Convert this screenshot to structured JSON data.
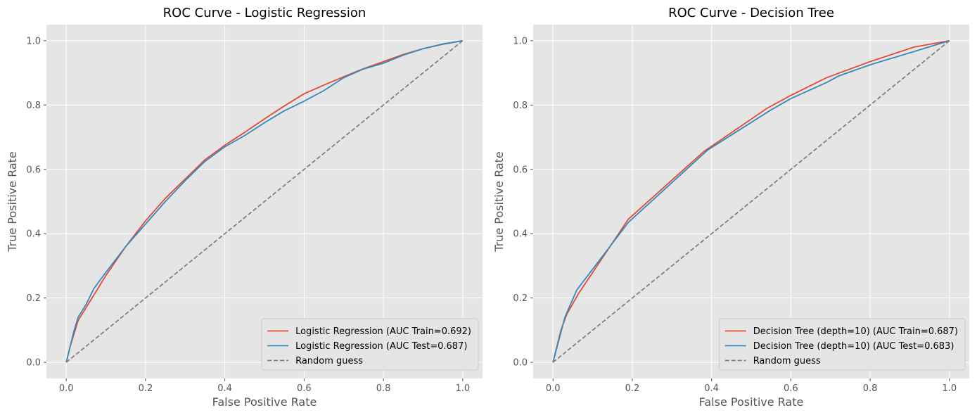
{
  "chart_data": [
    {
      "type": "line",
      "title": "ROC Curve - Logistic Regression",
      "xlabel": "False Positive Rate",
      "ylabel": "True Positive Rate",
      "xlim": [
        -0.05,
        1.05
      ],
      "ylim": [
        -0.05,
        1.05
      ],
      "xticks": [
        0.0,
        0.2,
        0.4,
        0.6,
        0.8,
        1.0
      ],
      "yticks": [
        0.0,
        0.2,
        0.4,
        0.6,
        0.8,
        1.0
      ],
      "xtick_labels": [
        "0.0",
        "0.2",
        "0.4",
        "0.6",
        "0.8",
        "1.0"
      ],
      "ytick_labels": [
        "0.0",
        "0.2",
        "0.4",
        "0.6",
        "0.8",
        "1.0"
      ],
      "grid": true,
      "legend_position": "lower-right",
      "series": [
        {
          "name": "Logistic Regression (AUC Train=0.692)",
          "color": "#e24a33",
          "dash": "solid",
          "x": [
            0.0,
            0.01,
            0.02,
            0.03,
            0.05,
            0.07,
            0.1,
            0.15,
            0.2,
            0.25,
            0.3,
            0.35,
            0.4,
            0.45,
            0.5,
            0.55,
            0.6,
            0.65,
            0.7,
            0.75,
            0.8,
            0.85,
            0.9,
            0.95,
            1.0
          ],
          "y": [
            0.0,
            0.05,
            0.09,
            0.13,
            0.17,
            0.21,
            0.27,
            0.36,
            0.44,
            0.51,
            0.57,
            0.63,
            0.675,
            0.715,
            0.757,
            0.797,
            0.835,
            0.862,
            0.888,
            0.913,
            0.935,
            0.957,
            0.975,
            0.989,
            1.0
          ]
        },
        {
          "name": "Logistic Regression (AUC Test=0.687)",
          "color": "#348abd",
          "dash": "solid",
          "x": [
            0.0,
            0.01,
            0.02,
            0.03,
            0.05,
            0.07,
            0.1,
            0.15,
            0.2,
            0.25,
            0.3,
            0.35,
            0.4,
            0.45,
            0.5,
            0.55,
            0.6,
            0.65,
            0.7,
            0.75,
            0.8,
            0.85,
            0.9,
            0.95,
            1.0
          ],
          "y": [
            0.0,
            0.05,
            0.1,
            0.14,
            0.18,
            0.23,
            0.28,
            0.36,
            0.43,
            0.5,
            0.565,
            0.625,
            0.67,
            0.705,
            0.745,
            0.782,
            0.812,
            0.845,
            0.885,
            0.912,
            0.93,
            0.955,
            0.975,
            0.99,
            1.0
          ]
        },
        {
          "name": "Random guess",
          "color": "#808080",
          "dash": "dashed",
          "x": [
            0.0,
            1.0
          ],
          "y": [
            0.0,
            1.0
          ]
        }
      ]
    },
    {
      "type": "line",
      "title": "ROC Curve - Decision Tree",
      "xlabel": "False Positive Rate",
      "ylabel": "True Positive Rate",
      "xlim": [
        -0.05,
        1.05
      ],
      "ylim": [
        -0.05,
        1.05
      ],
      "xticks": [
        0.0,
        0.2,
        0.4,
        0.6,
        0.8,
        1.0
      ],
      "yticks": [
        0.0,
        0.2,
        0.4,
        0.6,
        0.8,
        1.0
      ],
      "xtick_labels": [
        "0.0",
        "0.2",
        "0.4",
        "0.6",
        "0.8",
        "1.0"
      ],
      "ytick_labels": [
        "0.0",
        "0.2",
        "0.4",
        "0.6",
        "0.8",
        "1.0"
      ],
      "grid": true,
      "legend_position": "lower-right",
      "series": [
        {
          "name": "Decision Tree (depth=10) (AUC Train=0.687)",
          "color": "#e24a33",
          "dash": "solid",
          "x": [
            0.0,
            0.02,
            0.035,
            0.065,
            0.19,
            0.38,
            0.54,
            0.6,
            0.69,
            0.8,
            0.91,
            1.0
          ],
          "y": [
            0.0,
            0.1,
            0.15,
            0.215,
            0.445,
            0.655,
            0.79,
            0.83,
            0.885,
            0.935,
            0.98,
            1.0
          ]
        },
        {
          "name": "Decision Tree (depth=10) (AUC Test=0.683)",
          "color": "#348abd",
          "dash": "solid",
          "x": [
            0.0,
            0.015,
            0.03,
            0.06,
            0.19,
            0.39,
            0.55,
            0.6,
            0.69,
            0.72,
            0.8,
            0.92,
            1.0
          ],
          "y": [
            0.0,
            0.07,
            0.14,
            0.225,
            0.435,
            0.66,
            0.785,
            0.82,
            0.87,
            0.89,
            0.925,
            0.97,
            1.0
          ]
        },
        {
          "name": "Random guess",
          "color": "#808080",
          "dash": "dashed",
          "x": [
            0.0,
            1.0
          ],
          "y": [
            0.0,
            1.0
          ]
        }
      ]
    }
  ]
}
